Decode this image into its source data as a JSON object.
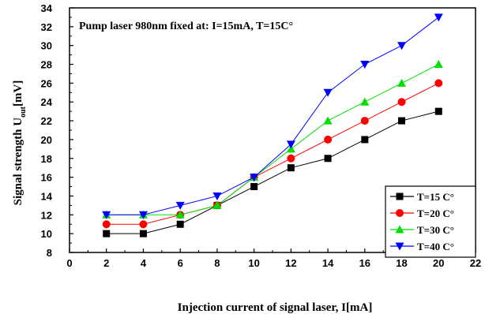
{
  "chart_data": {
    "type": "line",
    "title": "",
    "annotation": "Pump laser 980nm fixed at: I=15mA, T=15C°",
    "xlabel": "Injection current of signal laser, I[mA]",
    "ylabel": {
      "main": "Signal strength U",
      "subscript": "out",
      "unit": "[mV]"
    },
    "xlim": [
      0,
      22
    ],
    "ylim": [
      8,
      34
    ],
    "x_ticks": [
      "0",
      "2",
      "4",
      "6",
      "8",
      "10",
      "12",
      "14",
      "16",
      "18",
      "20",
      "22"
    ],
    "y_ticks": [
      "8",
      "10",
      "12",
      "14",
      "16",
      "18",
      "20",
      "22",
      "24",
      "26",
      "28",
      "30",
      "32",
      "34"
    ],
    "grid": false,
    "legend_position": "bottom-right",
    "x": [
      2,
      4,
      6,
      8,
      10,
      12,
      14,
      16,
      18,
      20
    ],
    "series": [
      {
        "name": "T=15 C°",
        "marker": "square",
        "color": "#000000",
        "values": [
          10,
          10,
          11,
          13,
          15,
          17,
          18,
          20,
          22,
          23
        ]
      },
      {
        "name": "T=20 C°",
        "marker": "circle",
        "color": "#ff0000",
        "values": [
          11,
          11,
          12,
          13,
          16,
          18,
          20,
          22,
          24,
          26
        ]
      },
      {
        "name": "T=30 C°",
        "marker": "triangle-up",
        "color": "#00e000",
        "values": [
          12,
          12,
          12,
          13,
          16,
          19,
          22,
          24,
          26,
          28
        ]
      },
      {
        "name": "T=40 C°",
        "marker": "triangle-down",
        "color": "#0000ff",
        "values": [
          12,
          12,
          13,
          14,
          16,
          19.5,
          25,
          28,
          30,
          33
        ]
      }
    ]
  }
}
